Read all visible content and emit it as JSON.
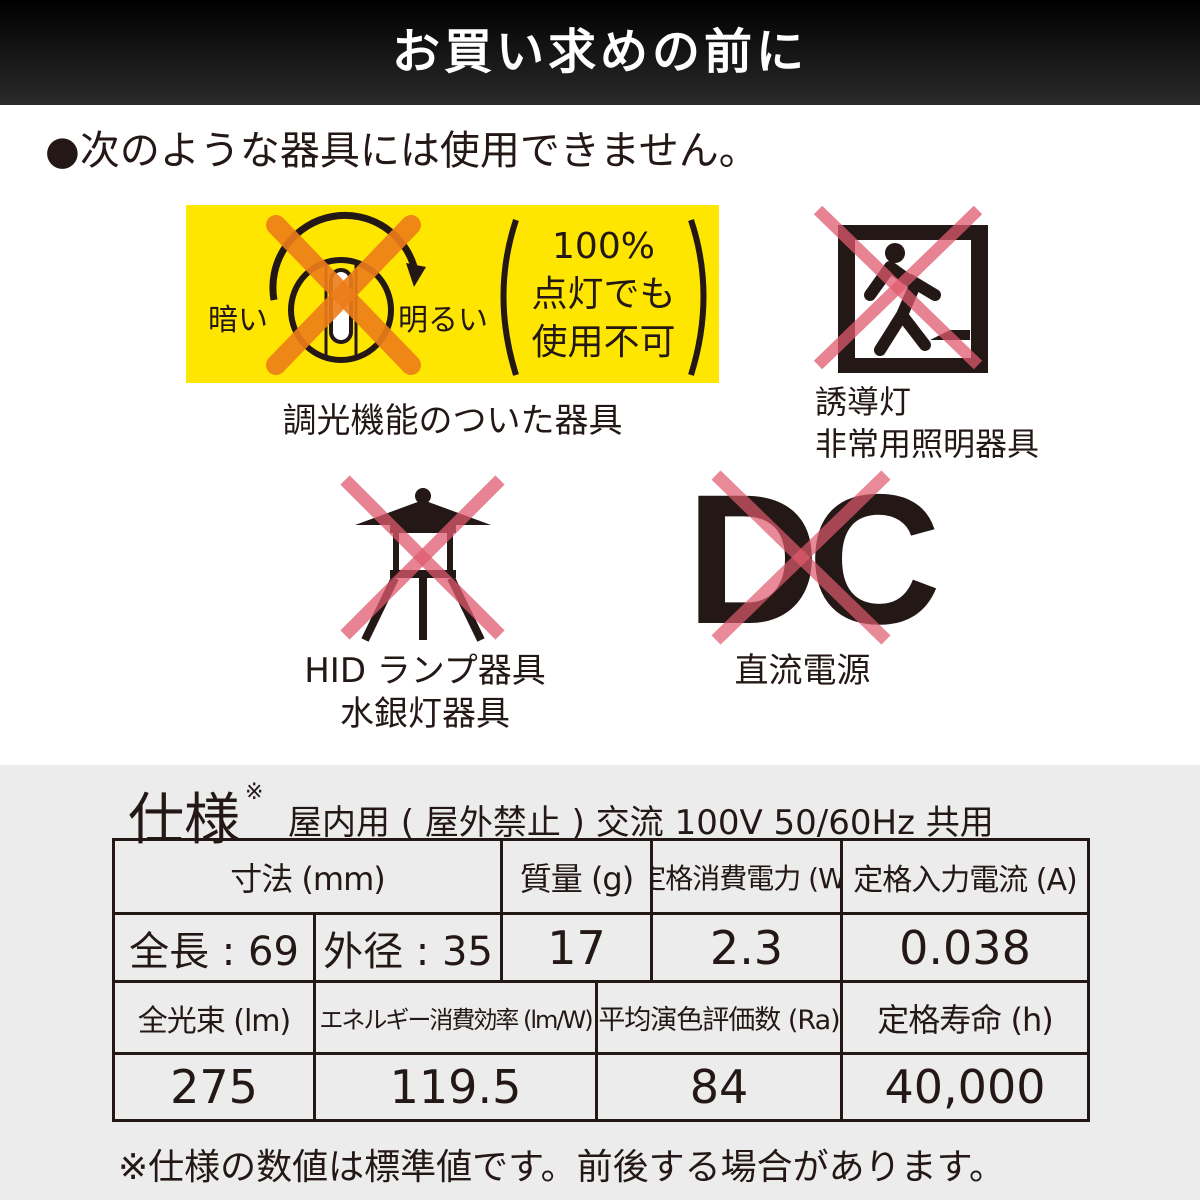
{
  "header": {
    "title": "お買い求めの前に"
  },
  "notice": "●次のような器具には使用できません。",
  "items": {
    "dimmer": {
      "dark": "暗い",
      "bright": "明るい",
      "note_line1": "100%",
      "note_line2": "点灯でも",
      "note_line3": "使用不可",
      "caption": "調光機能のついた器具"
    },
    "exit": {
      "caption_line1": "誘導灯",
      "caption_line2": "非常用照明器具"
    },
    "hid": {
      "caption_line1": "HID ランプ器具",
      "caption_line2": "水銀灯器具"
    },
    "dc": {
      "logo": "DC",
      "caption": "直流電源"
    }
  },
  "spec": {
    "title": "仕様",
    "mark": "※",
    "subtitle": "屋内用 ( 屋外禁止 ) 交流 100V 50/60Hz 共用",
    "headers1": [
      "寸法 (mm)",
      "質量 (g)",
      "定格消費電力 (W)",
      "定格入力電流 (A)"
    ],
    "values1": [
      "全長 : 69",
      "外径 : 35",
      "17",
      "2.3",
      "0.038"
    ],
    "headers2": [
      "全光束 (lm)",
      "エネルギー消費効率 (lm/W)",
      "平均演色評価数 (Ra)",
      "定格寿命 (h)"
    ],
    "values2": [
      "275",
      "119.5",
      "84",
      "40,000"
    ],
    "footnote": "※仕様の数値は標準値です。前後する場合があります。"
  },
  "colors": {
    "yellow": "#ffe600",
    "orange_x": "#ee7d1a",
    "red_x": "#e05a6e",
    "dark": "#231815"
  }
}
